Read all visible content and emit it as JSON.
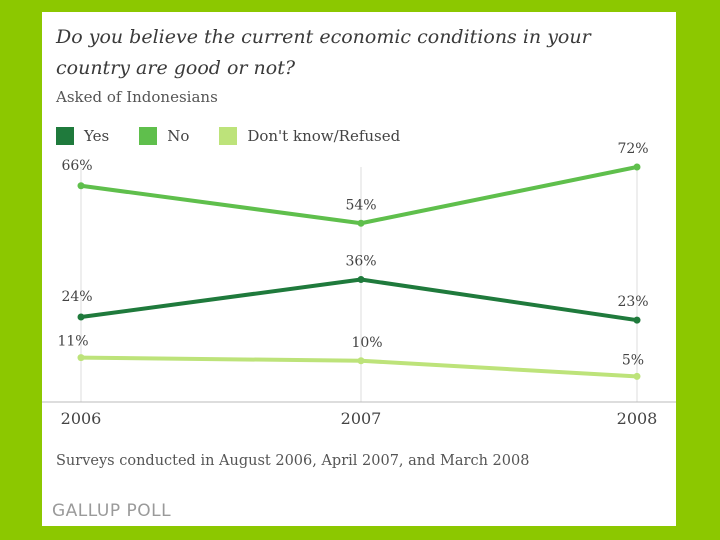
{
  "chart_data": {
    "type": "line",
    "title": "Do you believe the current economic conditions in your country are good or not?",
    "subtitle": "Asked of Indonesians",
    "x": [
      "2006",
      "2007",
      "2008"
    ],
    "ylim": [
      0,
      80
    ],
    "series": [
      {
        "name": "Yes",
        "color": "#1f7a3c",
        "values": [
          24,
          36,
          23
        ],
        "labels": [
          "24%",
          "36%",
          "23%"
        ]
      },
      {
        "name": "No",
        "color": "#5fbf4c",
        "values": [
          66,
          54,
          72
        ],
        "labels": [
          "66%",
          "54%",
          "72%"
        ]
      },
      {
        "name": "Don't know/Refused",
        "color": "#bde37a",
        "values": [
          11,
          10,
          5
        ],
        "labels": [
          "11%",
          "10%",
          "5%"
        ]
      }
    ],
    "grid": "vertical",
    "footnote": "Surveys conducted in August 2006, April 2007, and March 2008",
    "source": "GALLUP POLL"
  }
}
